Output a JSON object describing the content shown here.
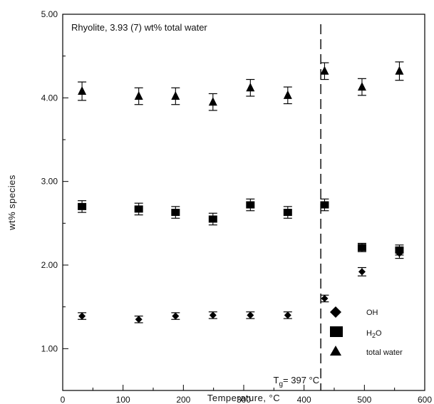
{
  "chart_data": {
    "type": "scatter",
    "title": "",
    "annotation": "Rhyolite, 3.93 (7) wt% total water",
    "xlabel": "Temperature, °C",
    "ylabel": "wt% species",
    "xlim": [
      0,
      600
    ],
    "ylim": [
      0.5,
      5.0
    ],
    "x_ticks": [
      "0",
      "100",
      "200",
      "300",
      "400",
      "500",
      "600"
    ],
    "y_ticks": [
      "1.00",
      "2.00",
      "3.00",
      "4.00",
      "5.00"
    ],
    "grid": false,
    "glass_transition": {
      "x": 397,
      "label_base": "T",
      "label_sub": "g",
      "label_rest": "= 397 °C",
      "style": "dashed vertical line"
    },
    "legend_position": "bottom-right",
    "series": [
      {
        "name": "OH",
        "marker": "diamond",
        "x": [
          32,
          126,
          187,
          249,
          311,
          373,
          434,
          496,
          558
        ],
        "y": [
          1.39,
          1.35,
          1.39,
          1.4,
          1.4,
          1.4,
          1.6,
          1.92,
          2.14
        ],
        "err": [
          0.04,
          0.04,
          0.04,
          0.04,
          0.04,
          0.04,
          0.04,
          0.05,
          0.06
        ]
      },
      {
        "name": "H2O",
        "marker": "square",
        "x": [
          32,
          126,
          187,
          249,
          311,
          373,
          434,
          496,
          558
        ],
        "y": [
          2.7,
          2.67,
          2.63,
          2.55,
          2.72,
          2.63,
          2.72,
          2.21,
          2.18
        ],
        "err": [
          0.07,
          0.07,
          0.07,
          0.07,
          0.07,
          0.07,
          0.07,
          0.05,
          0.06
        ]
      },
      {
        "name": "total water",
        "marker": "triangle",
        "x": [
          32,
          126,
          187,
          249,
          311,
          373,
          434,
          496,
          558
        ],
        "y": [
          4.08,
          4.02,
          4.02,
          3.95,
          4.12,
          4.03,
          4.32,
          4.13,
          4.32
        ],
        "err": [
          0.11,
          0.1,
          0.1,
          0.1,
          0.1,
          0.1,
          0.1,
          0.1,
          0.11
        ]
      }
    ]
  }
}
